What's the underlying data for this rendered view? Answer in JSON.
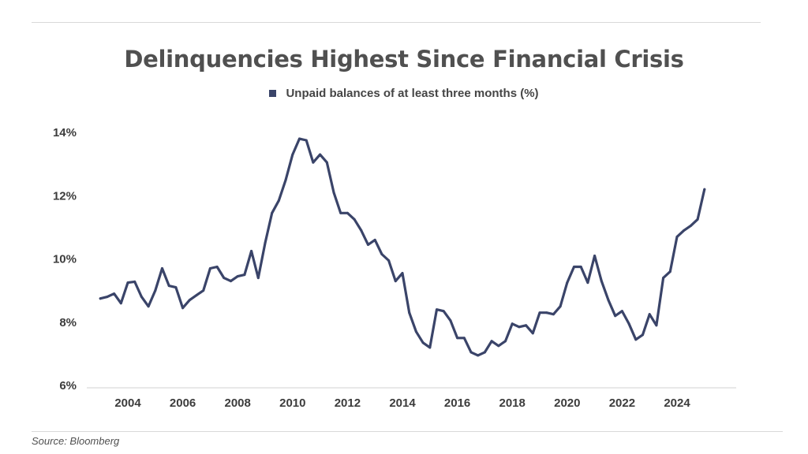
{
  "chart_data": {
    "type": "line",
    "title": "Delinquencies Highest Since Financial Crisis",
    "xlabel": "",
    "ylabel": "",
    "ylim": [
      6,
      14
    ],
    "xlim": [
      2002.75,
      2025.75
    ],
    "yticks": [
      6,
      8,
      10,
      12,
      14
    ],
    "ytick_labels": [
      "6%",
      "8%",
      "10%",
      "12%",
      "14%"
    ],
    "xticks": [
      2004,
      2006,
      2008,
      2010,
      2012,
      2014,
      2016,
      2018,
      2020,
      2022,
      2024
    ],
    "xtick_labels": [
      "2004",
      "2006",
      "2008",
      "2010",
      "2012",
      "2014",
      "2016",
      "2018",
      "2020",
      "2022",
      "2024"
    ],
    "grid": false,
    "legend_position": "top-center",
    "series": [
      {
        "name": "Unpaid balances of at least three months (%)",
        "color": "#3a4469",
        "points": [
          [
            2003.0,
            8.75
          ],
          [
            2003.25,
            8.8
          ],
          [
            2003.5,
            8.9
          ],
          [
            2003.75,
            8.6
          ],
          [
            2004.0,
            9.25
          ],
          [
            2004.25,
            9.28
          ],
          [
            2004.5,
            8.8
          ],
          [
            2004.75,
            8.5
          ],
          [
            2005.0,
            9.0
          ],
          [
            2005.25,
            9.7
          ],
          [
            2005.5,
            9.15
          ],
          [
            2005.75,
            9.1
          ],
          [
            2006.0,
            8.45
          ],
          [
            2006.25,
            8.7
          ],
          [
            2006.5,
            8.85
          ],
          [
            2006.75,
            9.0
          ],
          [
            2007.0,
            9.7
          ],
          [
            2007.25,
            9.75
          ],
          [
            2007.5,
            9.4
          ],
          [
            2007.75,
            9.3
          ],
          [
            2008.0,
            9.45
          ],
          [
            2008.25,
            9.5
          ],
          [
            2008.5,
            10.25
          ],
          [
            2008.75,
            9.4
          ],
          [
            2009.0,
            10.5
          ],
          [
            2009.25,
            11.45
          ],
          [
            2009.5,
            11.85
          ],
          [
            2009.75,
            12.5
          ],
          [
            2010.0,
            13.3
          ],
          [
            2010.25,
            13.8
          ],
          [
            2010.5,
            13.75
          ],
          [
            2010.75,
            13.05
          ],
          [
            2011.0,
            13.3
          ],
          [
            2011.25,
            13.05
          ],
          [
            2011.5,
            12.1
          ],
          [
            2011.75,
            11.45
          ],
          [
            2012.0,
            11.45
          ],
          [
            2012.25,
            11.25
          ],
          [
            2012.5,
            10.9
          ],
          [
            2012.75,
            10.45
          ],
          [
            2013.0,
            10.6
          ],
          [
            2013.25,
            10.15
          ],
          [
            2013.5,
            9.95
          ],
          [
            2013.75,
            9.3
          ],
          [
            2014.0,
            9.55
          ],
          [
            2014.25,
            8.3
          ],
          [
            2014.5,
            7.7
          ],
          [
            2014.75,
            7.35
          ],
          [
            2015.0,
            7.2
          ],
          [
            2015.25,
            8.4
          ],
          [
            2015.5,
            8.35
          ],
          [
            2015.75,
            8.05
          ],
          [
            2016.0,
            7.5
          ],
          [
            2016.25,
            7.5
          ],
          [
            2016.5,
            7.05
          ],
          [
            2016.75,
            6.95
          ],
          [
            2017.0,
            7.05
          ],
          [
            2017.25,
            7.4
          ],
          [
            2017.5,
            7.25
          ],
          [
            2017.75,
            7.4
          ],
          [
            2018.0,
            7.95
          ],
          [
            2018.25,
            7.85
          ],
          [
            2018.5,
            7.9
          ],
          [
            2018.75,
            7.65
          ],
          [
            2019.0,
            8.3
          ],
          [
            2019.25,
            8.3
          ],
          [
            2019.5,
            8.25
          ],
          [
            2019.75,
            8.5
          ],
          [
            2020.0,
            9.25
          ],
          [
            2020.25,
            9.75
          ],
          [
            2020.5,
            9.75
          ],
          [
            2020.75,
            9.25
          ],
          [
            2021.0,
            10.1
          ],
          [
            2021.25,
            9.3
          ],
          [
            2021.5,
            8.7
          ],
          [
            2021.75,
            8.2
          ],
          [
            2022.0,
            8.35
          ],
          [
            2022.25,
            7.95
          ],
          [
            2022.5,
            7.45
          ],
          [
            2022.75,
            7.6
          ],
          [
            2023.0,
            8.25
          ],
          [
            2023.25,
            7.9
          ],
          [
            2023.5,
            9.4
          ],
          [
            2023.75,
            9.6
          ],
          [
            2024.0,
            10.7
          ],
          [
            2024.25,
            10.9
          ],
          [
            2024.5,
            11.05
          ],
          [
            2024.75,
            11.25
          ],
          [
            2025.0,
            12.2
          ]
        ]
      }
    ],
    "source": "Source: Bloomberg"
  }
}
